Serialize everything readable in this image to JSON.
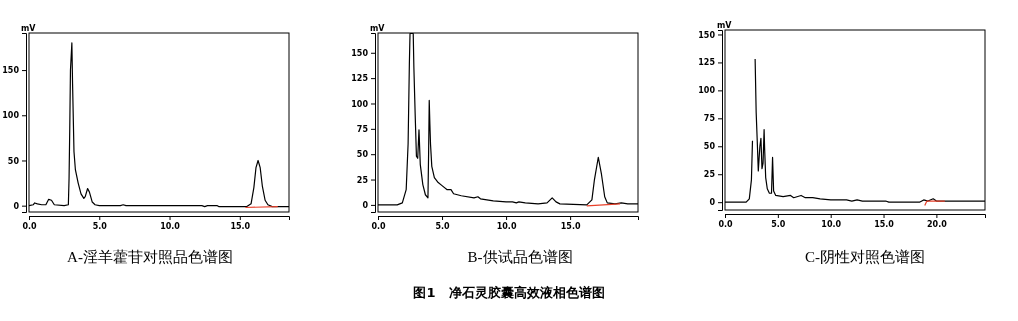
{
  "chart_data": [
    {
      "type": "line",
      "title": "A-淫羊藿苷对照品色谱图",
      "ylabel": "mV",
      "xlim": [
        0,
        18.5
      ],
      "ylim": [
        -7,
        191
      ],
      "xticks": [
        {
          "value": 0,
          "label": "0.0"
        },
        {
          "value": 5,
          "label": "5.0"
        },
        {
          "value": 10,
          "label": "10.0"
        },
        {
          "value": 15,
          "label": "15.0"
        }
      ],
      "yticks": [
        0,
        50,
        100,
        150
      ],
      "series": [
        {
          "color": "#000000",
          "x": [
            0,
            0.3,
            0.4,
            0.6,
            0.9,
            1.2,
            1.4,
            1.6,
            1.8,
            2.5,
            2.8,
            2.85,
            2.9,
            2.95,
            3.05,
            3.1,
            3.2,
            3.3,
            3.5,
            3.7,
            3.9,
            4.0,
            4.17,
            4.3,
            4.5,
            4.7,
            5.0,
            6.5,
            6.7,
            6.9,
            12.3,
            12.5,
            12.7,
            13.4,
            13.5,
            15.5,
            15.8,
            16.0,
            16.15,
            16.3,
            16.45,
            16.6,
            16.8,
            17.0,
            17.3,
            18.5
          ],
          "values": [
            0,
            1,
            3,
            2,
            1,
            1,
            7,
            6,
            1,
            0,
            1,
            30,
            85,
            150,
            180,
            135,
            60,
            40,
            25,
            13,
            8,
            10,
            19,
            15,
            4,
            1,
            0,
            0,
            1,
            0,
            0,
            -1,
            0,
            0,
            -1,
            -1,
            2,
            20,
            42,
            50,
            42,
            22,
            6,
            1,
            -1,
            -1
          ]
        },
        {
          "color": "#e8402a",
          "x": [
            15.4,
            17.7
          ],
          "values": [
            -2,
            -1
          ]
        }
      ]
    },
    {
      "type": "line",
      "title": "B-供试品色谱图",
      "ylabel": "mV",
      "xlim": [
        0,
        20.3
      ],
      "ylim": [
        -7,
        169.5
      ],
      "xticks": [
        {
          "value": 0,
          "label": "0.0"
        },
        {
          "value": 5,
          "label": "5.0"
        },
        {
          "value": 10,
          "label": "10.0"
        },
        {
          "value": 15,
          "label": "15.0"
        }
      ],
      "yticks": [
        0,
        25,
        50,
        75,
        100,
        125,
        150
      ],
      "annotations": [
        "图1　净石灵胶囊高效液相色谱图"
      ],
      "series": [
        {
          "color": "#000000",
          "x": [
            0,
            1.5,
            1.9,
            2.2,
            2.35,
            2.45,
            2.5,
            2.65,
            2.75,
            2.8,
            2.9,
            3.0,
            3.1,
            3.2,
            3.3,
            3.5,
            3.7,
            3.9,
            3.95,
            4.0,
            4.05,
            4.1,
            4.2,
            4.4,
            4.7,
            5.0,
            5.4,
            5.7,
            5.9,
            6.5,
            7.5,
            7.8,
            8.0,
            9.0,
            10.0,
            10.5,
            10.8,
            11.0,
            11.5,
            12.5,
            13.2,
            13.6,
            13.9,
            14.2,
            16.3,
            16.7,
            16.9,
            17.2,
            17.45,
            17.7,
            17.9,
            18.5,
            19.0,
            19.5,
            20.3
          ],
          "values": [
            0,
            0,
            2,
            15,
            60,
            140,
            169,
            169,
            169,
            136,
            90,
            48,
            46,
            74,
            40,
            20,
            10,
            7,
            50,
            103,
            80,
            60,
            38,
            27,
            22,
            19,
            15,
            15,
            11,
            9,
            7,
            8,
            6,
            4,
            3,
            3,
            2,
            3,
            2,
            1,
            2,
            7,
            3,
            1,
            0,
            5,
            25,
            47,
            30,
            8,
            2,
            1,
            2,
            1,
            1
          ]
        },
        {
          "color": "#e8402a",
          "x": [
            16.3,
            18.9
          ],
          "values": [
            -1,
            1
          ]
        }
      ]
    },
    {
      "type": "line",
      "title": "C-阴性对照色谱图",
      "ylabel": "mV",
      "xlim": [
        0,
        24.6
      ],
      "ylim": [
        -7,
        154
      ],
      "xticks": [
        {
          "value": 0,
          "label": "0.0"
        },
        {
          "value": 5,
          "label": "5.0"
        },
        {
          "value": 10,
          "label": "10.0"
        },
        {
          "value": 15,
          "label": "15.0"
        },
        {
          "value": 20,
          "label": "20.0"
        }
      ],
      "yticks": [
        0,
        25,
        50,
        75,
        100,
        125,
        150
      ],
      "series": [
        {
          "color": "#000000",
          "x": [
            0,
            2.0,
            2.3,
            2.5,
            2.6,
            2.7,
            2.8,
            2.85,
            2.95,
            3.05,
            3.15,
            3.3,
            3.4,
            3.5,
            3.6,
            3.7,
            3.75,
            3.85,
            4.0,
            4.2,
            4.4,
            4.5,
            4.6,
            4.8,
            5.5,
            6.2,
            6.5,
            7.2,
            7.6,
            8.3,
            9.0,
            10.0,
            11.5,
            12.0,
            12.5,
            13.0,
            15.2,
            15.5,
            18.4,
            18.8,
            19.2,
            19.7,
            20.0,
            24.6
          ],
          "values": [
            0,
            0,
            3,
            20,
            55,
            null,
            null,
            128,
            80,
            55,
            28,
            50,
            57,
            30,
            35,
            65,
            48,
            22,
            12,
            8,
            8,
            40,
            10,
            6,
            5,
            6,
            4,
            6,
            4,
            4,
            3,
            2,
            2,
            1,
            2,
            1,
            1,
            0,
            0,
            2,
            1,
            3,
            1,
            1
          ]
        },
        {
          "color": "#e8402a",
          "x": [
            18.9,
            19.1,
            20.8
          ],
          "values": [
            -3,
            1,
            1
          ]
        }
      ]
    }
  ]
}
